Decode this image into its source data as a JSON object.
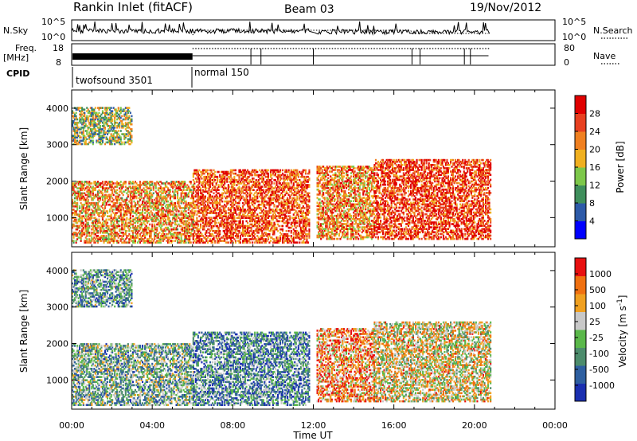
{
  "header": {
    "title": "Rankin Inlet (fitACF)",
    "beam": "Beam 03",
    "date": "19/Nov/2012"
  },
  "status_panels": {
    "nsky_label": "N.Sky",
    "nsky_ticks": [
      "10^5",
      "10^0"
    ],
    "nsearch_label": "N.Search",
    "nsearch_ticks": [
      "10^5",
      "10^0"
    ],
    "freq_label": "Freq.",
    "freq_unit": "[MHz]",
    "freq_ticks": [
      "18",
      "8"
    ],
    "nave_label": "Nave",
    "nave_ticks": [
      "80",
      "0"
    ],
    "cpid_label": "CPID",
    "cpid_modes": [
      {
        "name": "twofsound 3501",
        "start_hour": 0,
        "end_hour": 6
      },
      {
        "name": "normal 150",
        "start_hour": 6,
        "end_hour": 20.8
      }
    ]
  },
  "chart_data": [
    {
      "type": "heatmap",
      "name": "power",
      "xlabel": "",
      "ylabel": "Slant Range [km]",
      "x_ticks": [
        "00:00",
        "04:00",
        "08:00",
        "12:00",
        "16:00",
        "20:00",
        "00:00"
      ],
      "x_range_hours": [
        0,
        24
      ],
      "ylim": [
        200,
        4500
      ],
      "y_ticks": [
        1000,
        2000,
        3000,
        4000
      ],
      "colorbar": {
        "label": "Power [dB]",
        "ticks": [
          "4",
          "8",
          "12",
          "16",
          "20",
          "24",
          "28"
        ],
        "range": [
          0,
          32
        ],
        "colors": [
          "#0000ff",
          "#2d5aa8",
          "#3f8f5c",
          "#7dc84a",
          "#f0b020",
          "#f08020",
          "#e84020",
          "#e00000"
        ]
      },
      "data_gaps_hours": [
        [
          11.9,
          12.1
        ]
      ],
      "data_end_hour": 20.8,
      "echo_regions": [
        {
          "t0": 0.0,
          "t1": 6.0,
          "r0": 300,
          "r1": 2000,
          "level": 0.65
        },
        {
          "t0": 0.0,
          "t1": 3.0,
          "r0": 3000,
          "r1": 4000,
          "level": 0.45
        },
        {
          "t0": 6.0,
          "t1": 11.8,
          "r0": 300,
          "r1": 2300,
          "level": 0.8
        },
        {
          "t0": 12.1,
          "t1": 15.0,
          "r0": 400,
          "r1": 2400,
          "level": 0.7
        },
        {
          "t0": 15.0,
          "t1": 20.8,
          "r0": 400,
          "r1": 2600,
          "level": 0.85
        }
      ]
    },
    {
      "type": "heatmap",
      "name": "velocity",
      "xlabel": "Time UT",
      "ylabel": "Slant Range [km]",
      "x_ticks": [
        "00:00",
        "04:00",
        "08:00",
        "12:00",
        "16:00",
        "20:00",
        "00:00"
      ],
      "x_range_hours": [
        0,
        24
      ],
      "ylim": [
        200,
        4500
      ],
      "y_ticks": [
        1000,
        2000,
        3000,
        4000
      ],
      "colorbar": {
        "label": "Velocity [m s^-1]",
        "ticks": [
          "1000",
          "500",
          "100",
          "25",
          "-25",
          "-100",
          "-500",
          "-1000"
        ],
        "colors": [
          "#1a2fb0",
          "#2e5fa0",
          "#4c8c6c",
          "#5ab84a",
          "#c8c8c8",
          "#f0a020",
          "#f07010",
          "#e81010"
        ]
      },
      "data_gaps_hours": [
        [
          11.9,
          12.1
        ]
      ],
      "data_end_hour": 20.8,
      "echo_regions": [
        {
          "t0": 0.0,
          "t1": 6.0,
          "r0": 300,
          "r1": 2000,
          "level": 0.4
        },
        {
          "t0": 0.0,
          "t1": 3.0,
          "r0": 3000,
          "r1": 4000,
          "level": 0.35
        },
        {
          "t0": 6.0,
          "t1": 11.8,
          "r0": 300,
          "r1": 2300,
          "level": 0.3
        },
        {
          "t0": 12.1,
          "t1": 15.0,
          "r0": 400,
          "r1": 2400,
          "level": 0.75
        },
        {
          "t0": 15.0,
          "t1": 20.8,
          "r0": 400,
          "r1": 2600,
          "level": 0.6
        }
      ]
    }
  ]
}
